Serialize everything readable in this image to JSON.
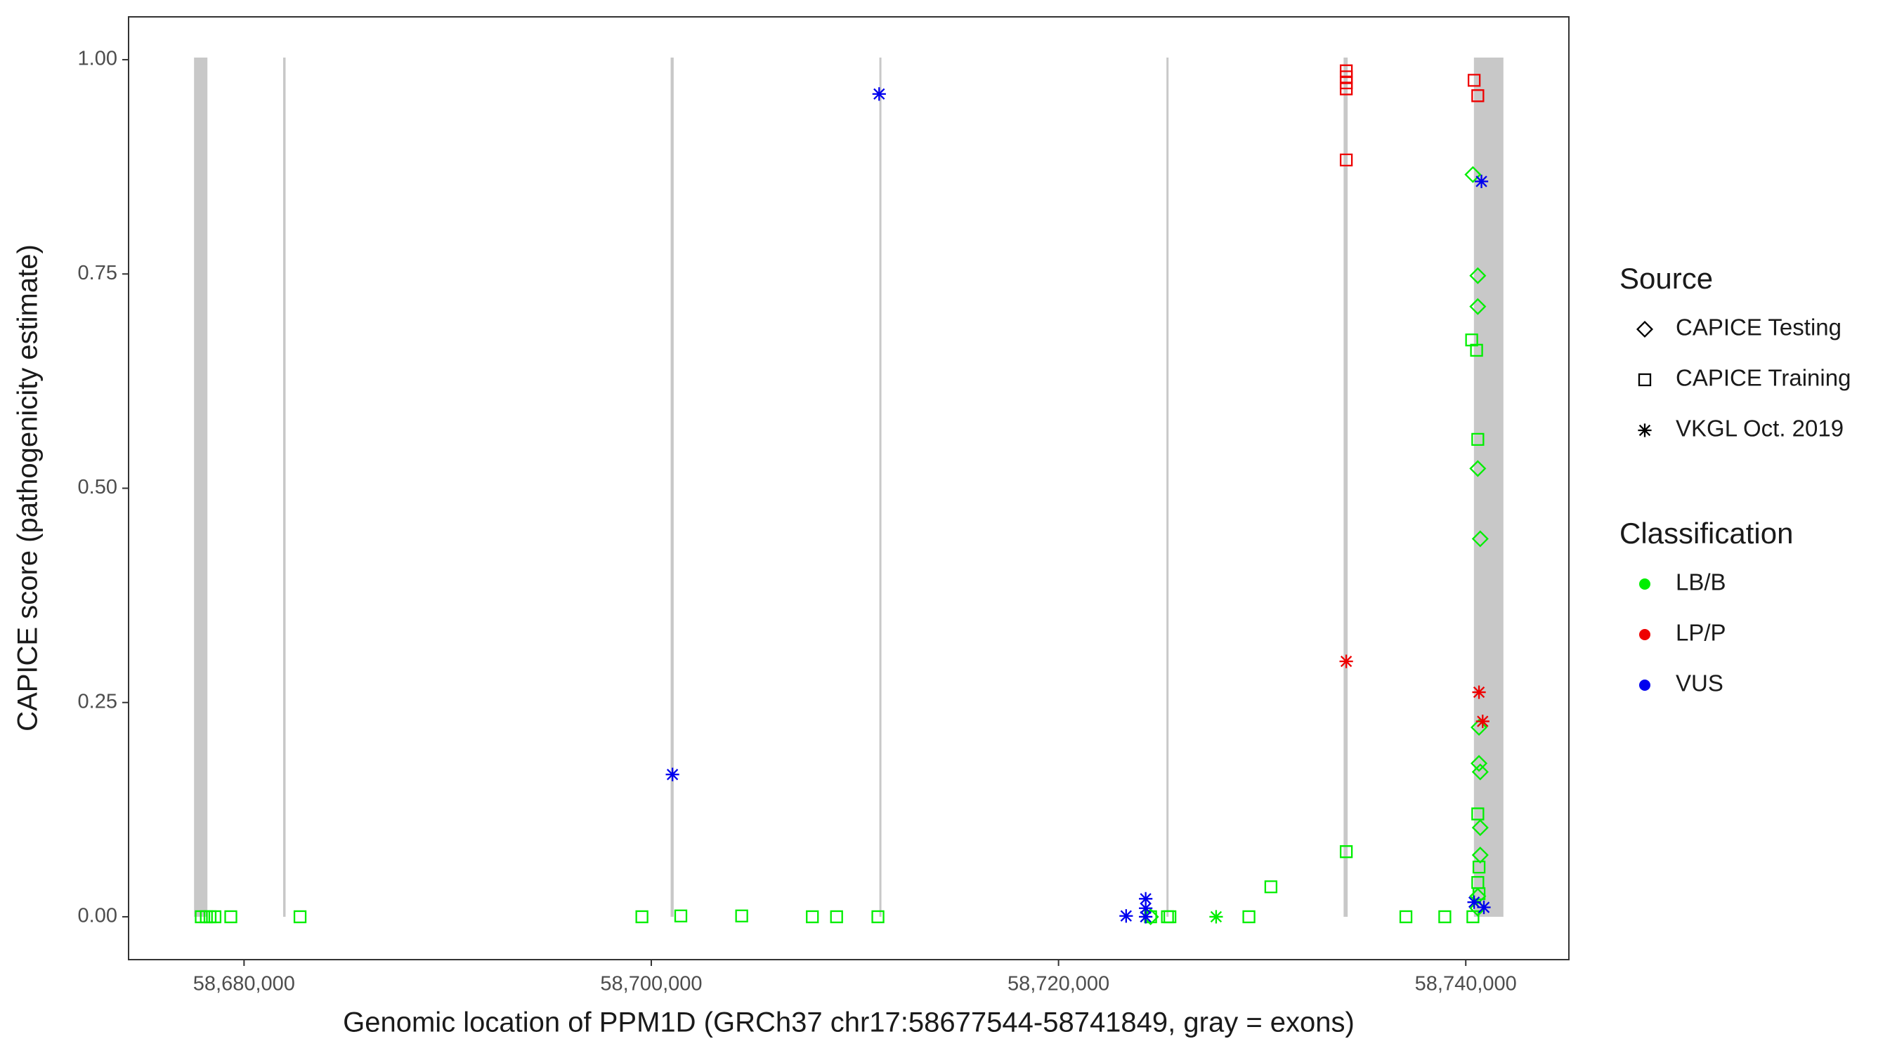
{
  "chart_data": {
    "type": "scatter",
    "x_label": "Genomic location of PPM1D (GRCh37 chr17:58677544-58741849, gray = exons)",
    "y_label": "CAPICE score (pathogenicity estimate)",
    "xlim": [
      58674329,
      58745064
    ],
    "ylim": [
      -0.05,
      1.05
    ],
    "xticks": [
      {
        "value": 58680000,
        "label": "58,680,000"
      },
      {
        "value": 58700000,
        "label": "58,700,000"
      },
      {
        "value": 58720000,
        "label": "58,720,000"
      },
      {
        "value": 58740000,
        "label": "58,740,000"
      }
    ],
    "yticks": [
      {
        "value": 0,
        "label": "0.00"
      },
      {
        "value": 0.25,
        "label": "0.25"
      },
      {
        "value": 0.5,
        "label": "0.50"
      },
      {
        "value": 0.75,
        "label": "0.75"
      },
      {
        "value": 1,
        "label": "1.00"
      }
    ],
    "exons": [
      [
        58677544,
        58678200
      ],
      [
        58681920,
        58682040
      ],
      [
        58700950,
        58701100
      ],
      [
        58711200,
        58711300
      ],
      [
        58725300,
        58725400
      ],
      [
        58734000,
        58734200
      ],
      [
        58740400,
        58741849
      ]
    ],
    "exon_color": "#c8c8c8",
    "source_title": "Source",
    "sources": [
      {
        "name": "CAPICE Testing",
        "shape": "diamond"
      },
      {
        "name": "CAPICE Training",
        "shape": "square"
      },
      {
        "name": "VKGL Oct. 2019",
        "shape": "asterisk"
      }
    ],
    "class_title": "Classification",
    "classes": [
      {
        "name": "LB/B",
        "color": "#00ee00"
      },
      {
        "name": "LP/P",
        "color": "#ee0000"
      },
      {
        "name": "VUS",
        "color": "#0000ee"
      }
    ],
    "points": {
      "x": [
        58677900,
        58678150,
        58678330,
        58678570,
        58679350,
        58682750,
        58699540,
        58701450,
        58704440,
        58707910,
        58709100,
        58711130,
        58724520,
        58725350,
        58725470,
        58729350,
        58730430,
        58734130,
        58737060,
        58738970,
        58740290,
        58740530,
        58740590,
        58740590,
        58740650,
        58740590,
        58740650,
        58740350,
        58734130,
        58734130,
        58734130,
        58734130,
        58734130,
        58740410,
        58740590,
        58740350,
        58740590,
        58740590,
        58740590,
        58740710,
        58740650,
        58740650,
        58740710,
        58740710,
        58740710,
        58740590,
        58740590,
        58724520,
        58711190,
        58701040,
        58723320,
        58724280,
        58724280,
        58724280,
        58740770,
        58740410,
        58740890,
        58734130,
        58740650,
        58740830,
        58727740
      ],
      "y": [
        0,
        0,
        0,
        0,
        0,
        0,
        0,
        0.001,
        0.001,
        0,
        0,
        0,
        0,
        0,
        0,
        0,
        0.035,
        0.076,
        0,
        0,
        0.673,
        0.661,
        0.557,
        0.12,
        0.058,
        0.04,
        0.027,
        0,
        0.987,
        0.98,
        0.973,
        0.966,
        0.883,
        0.976,
        0.958,
        0.866,
        0.748,
        0.712,
        0.523,
        0.441,
        0.221,
        0.179,
        0.169,
        0.104,
        0.072,
        0.024,
        0.01,
        0,
        0.96,
        0.166,
        0.001,
        0.021,
        0.01,
        0,
        0.858,
        0.017,
        0.011,
        0.298,
        0.262,
        0.228,
        0
      ],
      "source": [
        "CAPICE Training",
        "CAPICE Training",
        "CAPICE Training",
        "CAPICE Training",
        "CAPICE Training",
        "CAPICE Training",
        "CAPICE Training",
        "CAPICE Training",
        "CAPICE Training",
        "CAPICE Training",
        "CAPICE Training",
        "CAPICE Training",
        "CAPICE Training",
        "CAPICE Training",
        "CAPICE Training",
        "CAPICE Training",
        "CAPICE Training",
        "CAPICE Training",
        "CAPICE Training",
        "CAPICE Training",
        "CAPICE Training",
        "CAPICE Training",
        "CAPICE Training",
        "CAPICE Training",
        "CAPICE Training",
        "CAPICE Training",
        "CAPICE Training",
        "CAPICE Training",
        "CAPICE Training",
        "CAPICE Training",
        "CAPICE Training",
        "CAPICE Training",
        "CAPICE Training",
        "CAPICE Training",
        "CAPICE Training",
        "CAPICE Testing",
        "CAPICE Testing",
        "CAPICE Testing",
        "CAPICE Testing",
        "CAPICE Testing",
        "CAPICE Testing",
        "CAPICE Testing",
        "CAPICE Testing",
        "CAPICE Testing",
        "CAPICE Testing",
        "CAPICE Testing",
        "CAPICE Testing",
        "CAPICE Testing",
        "VKGL Oct. 2019",
        "VKGL Oct. 2019",
        "VKGL Oct. 2019",
        "VKGL Oct. 2019",
        "VKGL Oct. 2019",
        "VKGL Oct. 2019",
        "VKGL Oct. 2019",
        "VKGL Oct. 2019",
        "VKGL Oct. 2019",
        "VKGL Oct. 2019",
        "VKGL Oct. 2019",
        "VKGL Oct. 2019",
        "VKGL Oct. 2019"
      ],
      "class": [
        "LB/B",
        "LB/B",
        "LB/B",
        "LB/B",
        "LB/B",
        "LB/B",
        "LB/B",
        "LB/B",
        "LB/B",
        "LB/B",
        "LB/B",
        "LB/B",
        "LB/B",
        "LB/B",
        "LB/B",
        "LB/B",
        "LB/B",
        "LB/B",
        "LB/B",
        "LB/B",
        "LB/B",
        "LB/B",
        "LB/B",
        "LB/B",
        "LB/B",
        "LB/B",
        "LB/B",
        "LB/B",
        "LP/P",
        "LP/P",
        "LP/P",
        "LP/P",
        "LP/P",
        "LP/P",
        "LP/P",
        "LB/B",
        "LB/B",
        "LB/B",
        "LB/B",
        "LB/B",
        "LB/B",
        "LB/B",
        "LB/B",
        "LB/B",
        "LB/B",
        "LB/B",
        "LB/B",
        "LB/B",
        "VUS",
        "VUS",
        "VUS",
        "VUS",
        "VUS",
        "VUS",
        "VUS",
        "VUS",
        "VUS",
        "LP/P",
        "LP/P",
        "LP/P",
        "LB/B"
      ]
    }
  }
}
